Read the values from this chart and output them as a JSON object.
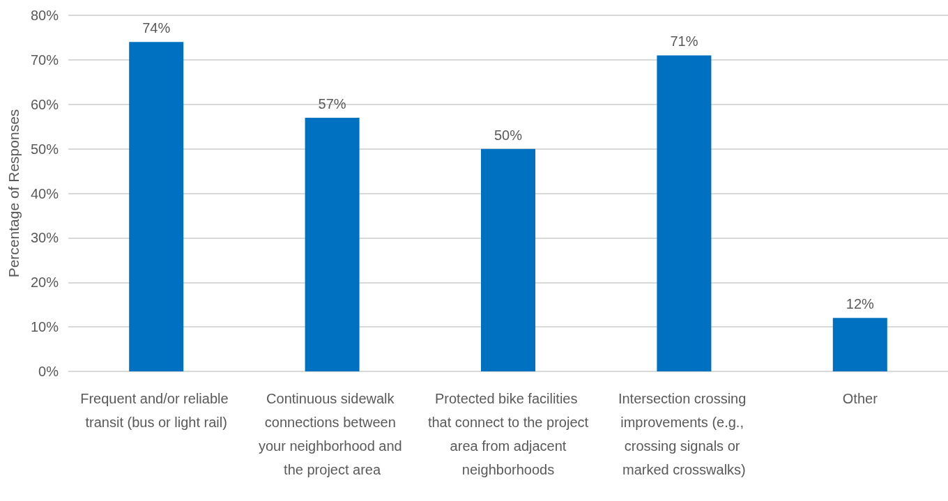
{
  "chart_data": {
    "type": "bar",
    "ylabel": "Percentage of Responses",
    "categories": [
      "Frequent and/or reliable transit (bus or light rail)",
      "Continuous sidewalk connections between your neighborhood and the project area",
      "Protected bike facilities that connect to the project area from adjacent neighborhoods",
      "Intersection crossing improvements (e.g., crossing signals or marked crosswalks)",
      "Other"
    ],
    "values": [
      74,
      57,
      50,
      71,
      12
    ],
    "value_labels": [
      "74%",
      "57%",
      "50%",
      "71%",
      "12%"
    ],
    "color": "#0070c0",
    "ylim": [
      0,
      80
    ],
    "yticks": [
      {
        "value": 0,
        "label": "0%"
      },
      {
        "value": 10,
        "label": "10%"
      },
      {
        "value": 20,
        "label": "20%"
      },
      {
        "value": 30,
        "label": "30%"
      },
      {
        "value": 40,
        "label": "40%"
      },
      {
        "value": 50,
        "label": "50%"
      },
      {
        "value": 60,
        "label": "60%"
      },
      {
        "value": 70,
        "label": "70%"
      },
      {
        "value": 80,
        "label": "80%"
      }
    ],
    "grid": "y"
  }
}
